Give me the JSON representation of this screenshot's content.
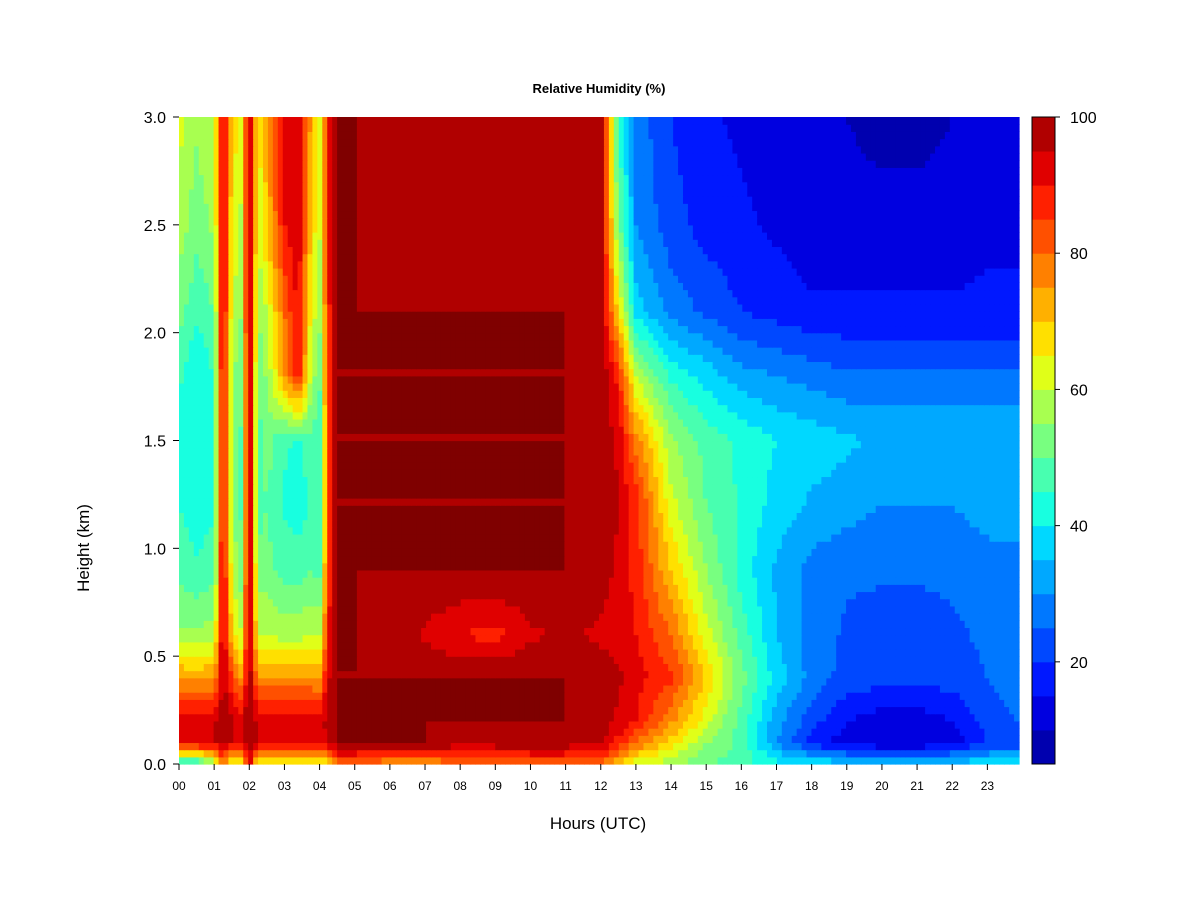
{
  "chart_data": {
    "type": "heatmap",
    "title": "Relative Humidity (%)",
    "xlabel": "Hours (UTC)",
    "ylabel": "Height (km)",
    "x_ticks": [
      "00",
      "01",
      "02",
      "03",
      "04",
      "05",
      "06",
      "07",
      "08",
      "09",
      "10",
      "11",
      "12",
      "13",
      "14",
      "15",
      "16",
      "17",
      "18",
      "19",
      "20",
      "21",
      "22",
      "23"
    ],
    "y_ticks": [
      "0.0",
      "0.5",
      "1.0",
      "1.5",
      "2.0",
      "2.5",
      "3.0"
    ],
    "xlim": [
      0,
      23.9
    ],
    "ylim": [
      0,
      3.0
    ],
    "colorbar": {
      "ticks": [
        "20",
        "40",
        "60",
        "80",
        "100"
      ],
      "range": [
        5,
        100
      ],
      "levels": [
        5,
        10,
        15,
        20,
        25,
        30,
        35,
        40,
        45,
        50,
        55,
        60,
        65,
        70,
        75,
        80,
        85,
        90,
        95,
        100
      ],
      "colors": [
        "#00007F",
        "#0000AF",
        "#0000E0",
        "#0018FF",
        "#0048FF",
        "#0078FF",
        "#00A8FF",
        "#00D8FF",
        "#18FFE0",
        "#48FFB0",
        "#78FF80",
        "#A8FF50",
        "#E0FF18",
        "#FFE000",
        "#FFB000",
        "#FF8000",
        "#FF5000",
        "#FF2000",
        "#E00000",
        "#B00000",
        "#7F0000"
      ]
    },
    "hours": [
      0,
      0.5,
      1,
      1.25,
      1.5,
      1.75,
      2,
      2.25,
      2.5,
      3,
      3.4,
      3.75,
      4,
      4.25,
      4.5,
      5,
      6,
      7,
      8,
      9,
      10,
      11,
      12,
      12.5,
      13,
      14,
      15,
      16,
      17,
      18,
      19,
      20,
      21,
      22,
      23,
      23.9
    ],
    "heights": [
      0.0,
      0.1,
      0.2,
      0.4,
      0.6,
      0.9,
      1.2,
      1.5,
      1.8,
      2.1,
      2.5,
      3.0
    ],
    "values": [
      [
        40,
        40,
        55,
        80,
        60,
        60,
        95,
        60,
        62,
        60,
        62,
        62,
        60,
        65,
        80,
        80,
        75,
        75,
        78,
        80,
        80,
        82,
        80,
        70,
        62,
        56,
        50,
        48,
        42,
        40,
        38,
        38,
        38,
        38,
        40,
        40
      ],
      [
        92,
        94,
        95,
        97,
        95,
        92,
        99,
        94,
        94,
        94,
        94,
        94,
        92,
        96,
        100,
        100,
        100,
        100,
        98,
        98,
        100,
        98,
        96,
        88,
        80,
        68,
        55,
        48,
        30,
        18,
        12,
        10,
        10,
        12,
        20,
        22
      ],
      [
        92,
        94,
        95,
        98,
        96,
        94,
        99,
        94,
        94,
        94,
        94,
        94,
        92,
        98,
        100,
        100,
        100,
        100,
        100,
        100,
        100,
        100,
        98,
        94,
        90,
        76,
        62,
        48,
        32,
        22,
        15,
        12,
        12,
        15,
        22,
        25
      ],
      [
        75,
        74,
        75,
        98,
        85,
        75,
        99,
        76,
        76,
        76,
        76,
        76,
        75,
        94,
        100,
        100,
        100,
        100,
        100,
        100,
        100,
        100,
        98,
        96,
        92,
        86,
        70,
        52,
        38,
        28,
        23,
        22,
        22,
        22,
        25,
        28
      ],
      [
        56,
        56,
        58,
        98,
        70,
        60,
        99,
        60,
        60,
        58,
        58,
        60,
        58,
        90,
        100,
        100,
        98,
        94,
        90,
        88,
        94,
        96,
        94,
        93,
        90,
        80,
        62,
        48,
        35,
        28,
        24,
        22,
        22,
        24,
        26,
        28
      ],
      [
        48,
        46,
        48,
        96,
        62,
        50,
        99,
        52,
        52,
        48,
        48,
        50,
        48,
        86,
        100,
        100,
        100,
        100,
        100,
        100,
        100,
        100,
        97,
        94,
        88,
        70,
        55,
        43,
        34,
        28,
        26,
        26,
        26,
        26,
        28,
        28
      ],
      [
        45,
        42,
        44,
        96,
        58,
        48,
        99,
        48,
        50,
        44,
        42,
        46,
        44,
        84,
        100,
        100,
        100,
        100,
        100,
        100,
        100,
        100,
        99,
        95,
        88,
        62,
        50,
        44,
        38,
        34,
        32,
        30,
        30,
        30,
        32,
        32
      ],
      [
        44,
        42,
        45,
        96,
        58,
        48,
        99,
        48,
        52,
        46,
        44,
        48,
        46,
        84,
        100,
        100,
        100,
        100,
        100,
        100,
        100,
        100,
        99,
        94,
        78,
        56,
        48,
        44,
        40,
        38,
        36,
        34,
        34,
        34,
        34,
        34
      ],
      [
        46,
        40,
        45,
        96,
        58,
        50,
        99,
        50,
        56,
        74,
        90,
        60,
        50,
        86,
        100,
        100,
        100,
        100,
        100,
        100,
        100,
        100,
        99,
        88,
        60,
        44,
        38,
        32,
        30,
        28,
        26,
        26,
        26,
        26,
        26,
        26
      ],
      [
        52,
        46,
        50,
        97,
        62,
        54,
        99,
        56,
        60,
        80,
        92,
        64,
        56,
        88,
        100,
        100,
        100,
        100,
        100,
        100,
        100,
        100,
        98,
        68,
        38,
        28,
        24,
        20,
        18,
        16,
        16,
        16,
        16,
        16,
        16,
        16
      ],
      [
        58,
        52,
        56,
        97,
        66,
        58,
        99,
        60,
        70,
        90,
        94,
        70,
        60,
        90,
        100,
        100,
        98,
        98,
        98,
        98,
        98,
        98,
        98,
        52,
        30,
        22,
        18,
        16,
        14,
        12,
        12,
        12,
        12,
        12,
        14,
        14
      ],
      [
        62,
        56,
        60,
        98,
        70,
        62,
        99,
        64,
        74,
        92,
        94,
        74,
        62,
        92,
        100,
        100,
        98,
        98,
        98,
        98,
        98,
        98,
        98,
        45,
        28,
        20,
        16,
        14,
        12,
        10,
        10,
        8,
        8,
        10,
        12,
        14
      ]
    ]
  }
}
